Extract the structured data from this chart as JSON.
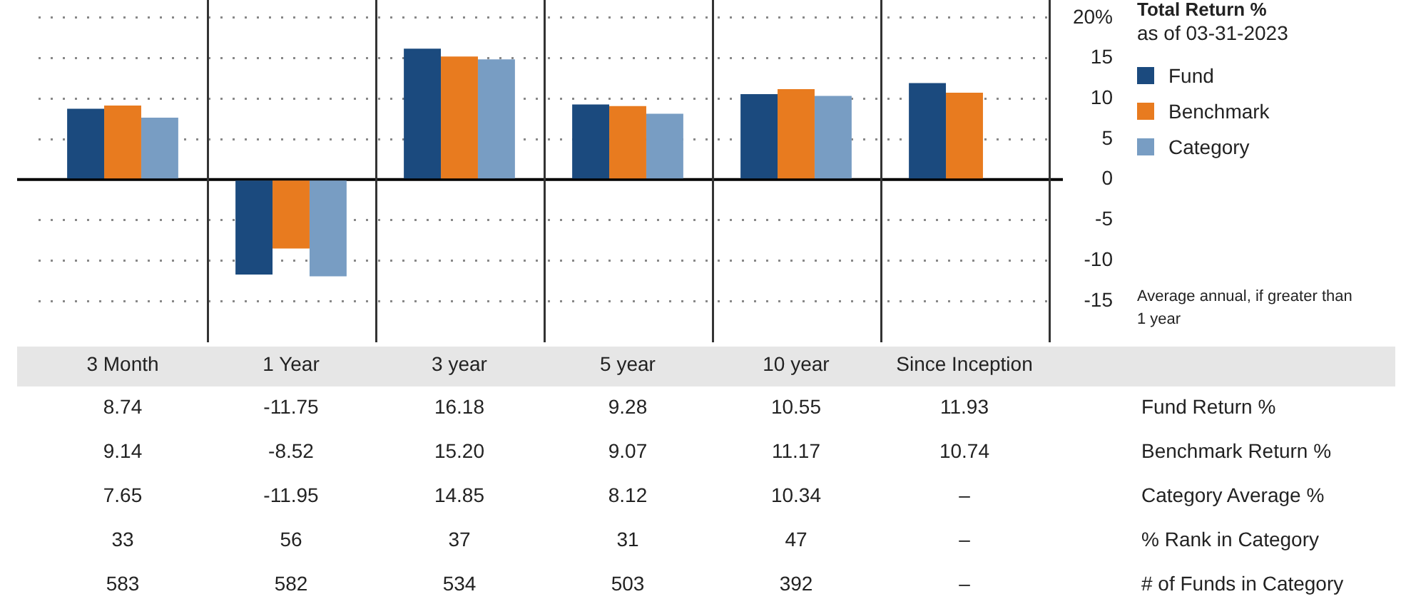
{
  "chart_data": {
    "type": "bar",
    "title": "Total Return %",
    "subtitle": "as of 03-31-2023",
    "categories": [
      "3 Month",
      "1 Year",
      "3 year",
      "5 year",
      "10 year",
      "Since Inception"
    ],
    "series": [
      {
        "name": "Fund",
        "color": "#1b4a7e",
        "values": [
          8.74,
          -11.75,
          16.18,
          9.28,
          10.55,
          11.93
        ],
        "value_labels": [
          "8.74",
          "-11.75",
          "16.18",
          "9.28",
          "10.55",
          "11.93"
        ]
      },
      {
        "name": "Benchmark",
        "color": "#e87b1f",
        "values": [
          9.14,
          -8.52,
          15.2,
          9.07,
          11.17,
          10.74
        ],
        "value_labels": [
          "9.14",
          "-8.52",
          "15.20",
          "9.07",
          "11.17",
          "10.74"
        ]
      },
      {
        "name": "Category",
        "color": "#789dc3",
        "values": [
          7.65,
          -11.95,
          14.85,
          8.12,
          10.34,
          null
        ],
        "value_labels": [
          "7.65",
          "-11.95",
          "14.85",
          "8.12",
          "10.34",
          "–"
        ]
      }
    ],
    "ylim": [
      -15,
      20
    ],
    "yticks": [
      {
        "value": 20,
        "label": "20%"
      },
      15,
      10,
      5,
      0,
      -5,
      -10,
      -15
    ],
    "grid": "y",
    "legend": "right",
    "annotations": [
      "Average annual, if greater than 1 year",
      "Fund Return %",
      "Benchmark Return %",
      "Category Average %",
      "% Rank in Category",
      "33",
      "56",
      "37",
      "31",
      "47",
      "–",
      "# of Funds in Category",
      "583",
      "582",
      "534",
      "503",
      "392",
      "–"
    ]
  }
}
